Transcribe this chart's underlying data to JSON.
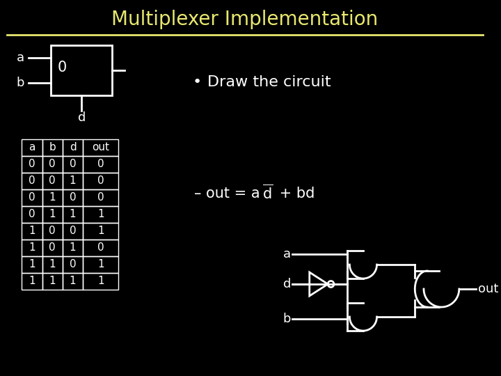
{
  "title": "Multiplexer Implementation",
  "title_color": "#e8e870",
  "bg_color": "#000000",
  "line_color": "#ffffff",
  "text_color": "#ffffff",
  "bullet_text": "Draw the circuit",
  "table_headers": [
    "a",
    "b",
    "d",
    "out"
  ],
  "table_data": [
    [
      0,
      0,
      0,
      0
    ],
    [
      0,
      0,
      1,
      0
    ],
    [
      0,
      1,
      0,
      0
    ],
    [
      0,
      1,
      1,
      1
    ],
    [
      1,
      0,
      0,
      1
    ],
    [
      1,
      0,
      1,
      0
    ],
    [
      1,
      1,
      0,
      1
    ],
    [
      1,
      1,
      1,
      1
    ]
  ]
}
